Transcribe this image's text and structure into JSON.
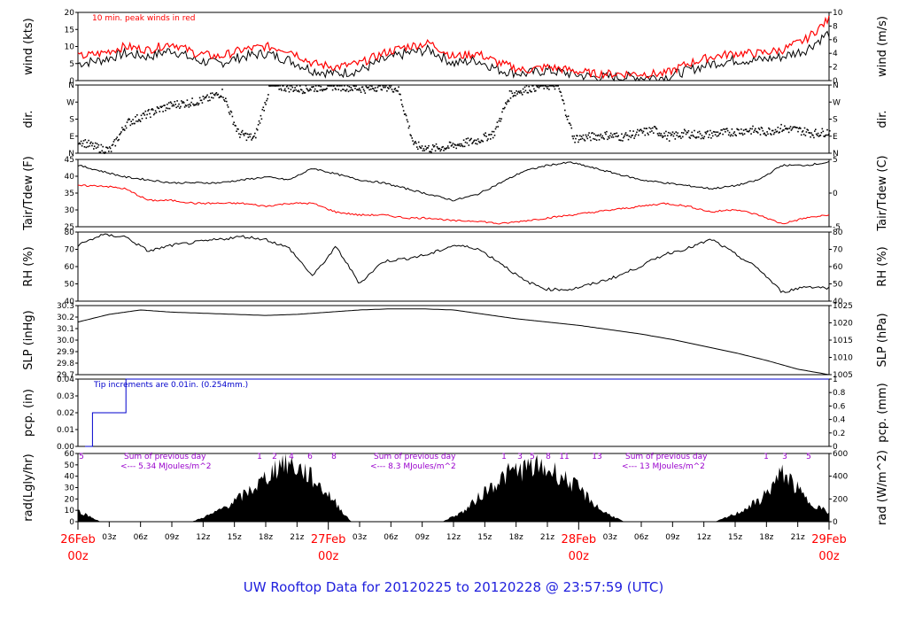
{
  "title": "UW Rooftop Data for 20120225  to  20120228 @ 23:57:59  (UTC)",
  "colors": {
    "red": "#ff0000",
    "blue": "#0000cc",
    "purple": "#9900cc",
    "title": "#2020dd"
  },
  "x_axis": {
    "hour_ticks": [
      "03z",
      "06z",
      "09z",
      "12z",
      "15z",
      "18z",
      "21z",
      "03z",
      "06z",
      "09z",
      "12z",
      "15z",
      "18z",
      "21z",
      "03z",
      "06z",
      "09z",
      "12z",
      "15z",
      "18z",
      "21z"
    ],
    "dates": [
      {
        "date": "26Feb",
        "hour": "00z"
      },
      {
        "date": "27Feb",
        "hour": "00z"
      },
      {
        "date": "28Feb",
        "hour": "00z"
      },
      {
        "date": "29Feb",
        "hour": "00z"
      }
    ]
  },
  "chart_data": [
    {
      "name": "wind",
      "type": "line",
      "ylabel_left": "wind (kts)",
      "ylabel_right": "wind (m/s)",
      "ylim": [
        0,
        20
      ],
      "yticks_left": [
        "0",
        "5",
        "10",
        "15",
        "20"
      ],
      "yticks_right": [
        "0",
        "2",
        "4",
        "6",
        "8",
        "10"
      ],
      "annotation": "10 min. peak winds in red",
      "series": [
        {
          "values": [
            5,
            6,
            8,
            7,
            9,
            6,
            5,
            7,
            8,
            6,
            3,
            2,
            3,
            6,
            8,
            9,
            5,
            6,
            3,
            2,
            3,
            2,
            1,
            1,
            1,
            1,
            3,
            5,
            6,
            6,
            7,
            9,
            14
          ]
        },
        {
          "values": [
            7,
            8,
            10,
            9,
            11,
            8,
            7,
            9,
            10,
            9,
            5,
            4,
            5,
            8,
            10,
            11,
            7,
            8,
            5,
            3,
            4,
            3,
            2,
            2,
            2,
            2,
            5,
            7,
            8,
            8,
            9,
            12,
            18
          ]
        }
      ]
    },
    {
      "name": "dir",
      "type": "scatter",
      "ylabel_left": "dir.",
      "ylabel_right": "dir.",
      "yticks_left": [
        "N",
        "E",
        "S",
        "W",
        "N"
      ],
      "yticks_right": [
        "N",
        "E",
        "S",
        "W",
        "N"
      ],
      "values": [
        0.8,
        0.4,
        0.2,
        1.8,
        2.2,
        2.6,
        2.9,
        3.0,
        3.2,
        3.6,
        1.2,
        0.9,
        4.0,
        3.9,
        3.8,
        3.9,
        4.0,
        3.9,
        3.8,
        4.0,
        3.8,
        0.5,
        0.3,
        0.4,
        0.6,
        0.8,
        1.2,
        3.5,
        3.8,
        4.0,
        4.0,
        0.9,
        1.0,
        1.1,
        1.0,
        1.2,
        1.4,
        1.0,
        1.2,
        1.1,
        1.2,
        1.3,
        1.4,
        1.3,
        1.5,
        1.4,
        1.2,
        1.3
      ]
    },
    {
      "name": "temp",
      "type": "line",
      "ylabel_left": "Tair/Tdew (F)",
      "ylabel_right": "Tair/Tdew (C)",
      "ylim": [
        23,
        46
      ],
      "yticks_left": [
        "25",
        "30",
        "35",
        "40",
        "45"
      ],
      "yticks_right": [
        "-5",
        "0",
        "5"
      ],
      "series": [
        {
          "values": [
            44,
            42,
            40,
            39,
            38,
            38,
            38,
            39,
            40,
            39,
            43,
            41,
            39,
            38,
            36,
            34,
            32,
            34,
            38,
            42,
            44,
            45,
            43,
            41,
            39,
            38,
            37,
            36,
            37,
            39,
            44,
            44,
            45
          ]
        },
        {
          "values": [
            37,
            37,
            36,
            32,
            32,
            31,
            31,
            31,
            30,
            31,
            31,
            28,
            27,
            27,
            26,
            26,
            25,
            25,
            24,
            25,
            26,
            27,
            28,
            29,
            30,
            31,
            30,
            28,
            29,
            27,
            24,
            26,
            27
          ]
        }
      ]
    },
    {
      "name": "rh",
      "type": "line",
      "ylabel_left": "RH (%)",
      "ylabel_right": "RH (%)",
      "ylim": [
        38,
        85
      ],
      "yticks_left": [
        "40",
        "50",
        "60",
        "70",
        "80"
      ],
      "yticks_right": [
        "40",
        "50",
        "60",
        "70",
        "80"
      ],
      "values": [
        76,
        83,
        82,
        72,
        76,
        78,
        80,
        82,
        80,
        74,
        55,
        75,
        50,
        65,
        67,
        70,
        76,
        74,
        64,
        52,
        46,
        46,
        50,
        55,
        62,
        70,
        74,
        80,
        70,
        60,
        44,
        48,
        47
      ]
    },
    {
      "name": "slp",
      "type": "line",
      "ylabel_left": "SLP (inHg)",
      "ylabel_right": "SLP (hPa)",
      "ylim": [
        29.67,
        30.3
      ],
      "yticks_left": [
        "29.7",
        "29.8",
        "29.9",
        "30.0",
        "30.1",
        "30.2",
        "30.3"
      ],
      "yticks_right": [
        "1005",
        "1010",
        "1015",
        "1020",
        "1025"
      ],
      "values": [
        30.15,
        30.22,
        30.26,
        30.24,
        30.23,
        30.22,
        30.21,
        30.22,
        30.24,
        30.26,
        30.27,
        30.27,
        30.26,
        30.22,
        30.18,
        30.15,
        30.12,
        30.08,
        30.04,
        29.99,
        29.93,
        29.87,
        29.8,
        29.72,
        29.67
      ]
    },
    {
      "name": "pcp",
      "type": "line",
      "ylabel_left": "pcp. (in)",
      "ylabel_right": "pcp. (mm)",
      "ylim": [
        0,
        0.04
      ],
      "yticks_left": [
        "0.00",
        "0.01",
        "0.02",
        "0.03",
        "0.04"
      ],
      "yticks_right": [
        "0",
        "0.2",
        "0.4",
        "0.6",
        "0.8",
        "1"
      ],
      "annotation": "Tip increments are 0.01in. (0.254mm.)",
      "values": [
        0,
        0,
        0.02,
        0.02,
        0.02,
        0.04,
        0.04
      ]
    },
    {
      "name": "rad",
      "type": "area",
      "ylabel_left": "rad(Lgly/hr)",
      "ylabel_right": "rad (W/m^2)",
      "ylim": [
        0,
        65
      ],
      "yticks_left": [
        "0",
        "10",
        "20",
        "30",
        "40",
        "50",
        "60"
      ],
      "yticks_right": [
        "0",
        "200",
        "400",
        "600"
      ],
      "annotations": [
        {
          "line1": "Sum of previous day",
          "line2": "<--- 5.34 MJoules/m^2"
        },
        {
          "line1": "Sum of previous day",
          "line2": "<--- 8.3 MJoules/m^2"
        },
        {
          "line1": "Sum of previous day",
          "line2": "<--- 13 MJoules/m^2"
        }
      ],
      "sunshine_hours": [
        {
          "label": "5"
        },
        {
          "label": "1"
        },
        {
          "label": "2"
        },
        {
          "label": "4"
        },
        {
          "label": "6"
        },
        {
          "label": "8"
        },
        {
          "label": "1"
        },
        {
          "label": "3"
        },
        {
          "label": "5"
        },
        {
          "label": "8"
        },
        {
          "label": "11"
        },
        {
          "label": "13"
        },
        {
          "label": "1"
        },
        {
          "label": "3"
        },
        {
          "label": "5"
        }
      ],
      "values": [
        10,
        0,
        0,
        0,
        0,
        0,
        8,
        20,
        35,
        55,
        45,
        25,
        0,
        0,
        0,
        0,
        0,
        10,
        30,
        45,
        50,
        45,
        30,
        10,
        0,
        0,
        0,
        0,
        0,
        8,
        20,
        45,
        20,
        8
      ]
    }
  ]
}
